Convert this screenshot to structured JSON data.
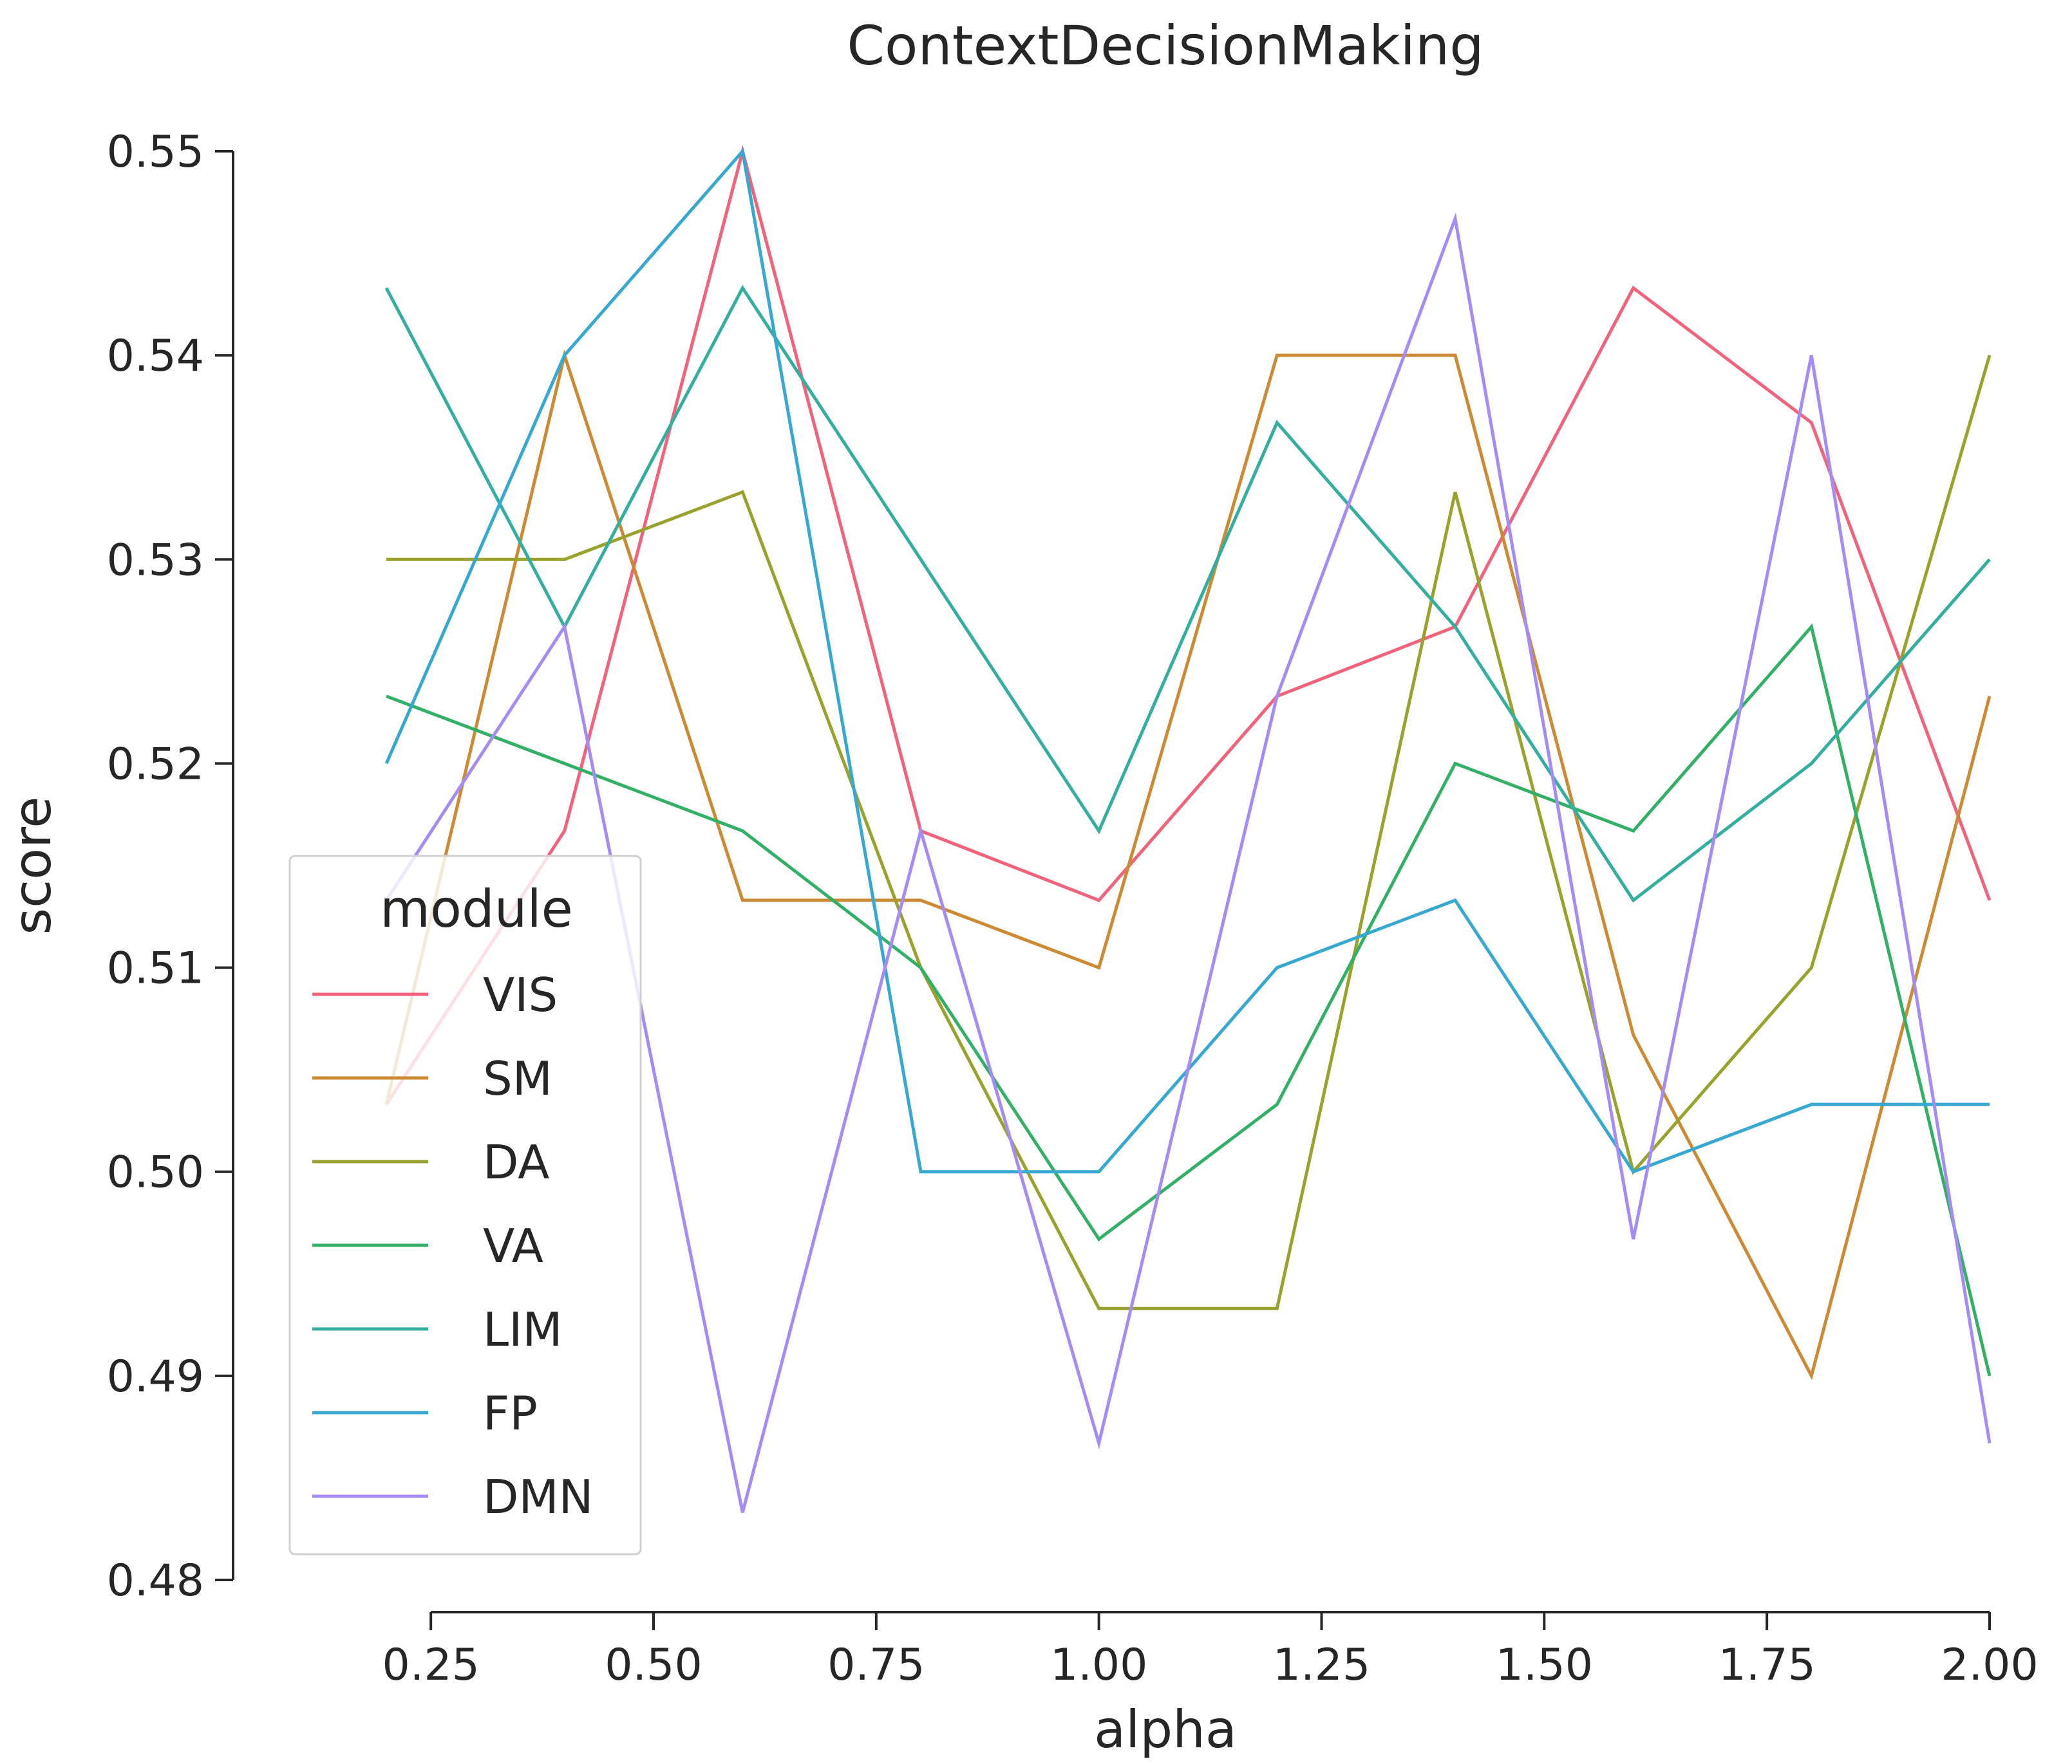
{
  "chart_data": {
    "type": "line",
    "title": "ContextDecisionMaking",
    "xlabel": "alpha",
    "ylabel": "score",
    "xlim": [
      0.2,
      2.0
    ],
    "ylim": [
      0.48,
      0.55
    ],
    "xticks": [
      "0.25",
      "0.50",
      "0.75",
      "1.00",
      "1.25",
      "1.50",
      "1.75",
      "2.00"
    ],
    "yticks": [
      "0.48",
      "0.49",
      "0.50",
      "0.51",
      "0.52",
      "0.53",
      "0.54",
      "0.55"
    ],
    "grid": false,
    "legend": {
      "title": "module",
      "placement": "lower-left"
    },
    "x": [
      0.2,
      0.4,
      0.6,
      0.8,
      1.0,
      1.2,
      1.4,
      1.6,
      1.8,
      2.0
    ],
    "series": [
      {
        "name": "VIS",
        "color": "#f0637a",
        "values": [
          0.5033,
          0.5167,
          0.55,
          0.5167,
          0.5133,
          0.5233,
          0.5267,
          0.5433,
          0.5367,
          0.5133
        ]
      },
      {
        "name": "SM",
        "color": "#cc8a35",
        "values": [
          0.5033,
          0.54,
          0.5133,
          0.5133,
          0.51,
          0.54,
          0.54,
          0.5067,
          0.49,
          0.5233
        ]
      },
      {
        "name": "DA",
        "color": "#9aa22e",
        "values": [
          0.53,
          0.53,
          0.5333,
          0.51,
          0.4933,
          0.4933,
          0.5333,
          0.5,
          0.51,
          0.54
        ]
      },
      {
        "name": "VA",
        "color": "#32b166",
        "values": [
          0.5233,
          0.52,
          0.5167,
          0.51,
          0.4967,
          0.5033,
          0.52,
          0.5167,
          0.5267,
          0.49
        ]
      },
      {
        "name": "LIM",
        "color": "#33ae9f",
        "values": [
          0.5433,
          0.5267,
          0.5433,
          0.53,
          0.5167,
          0.5367,
          0.5267,
          0.5133,
          0.52,
          0.53
        ]
      },
      {
        "name": "FP",
        "color": "#37a9d1",
        "values": [
          0.52,
          0.54,
          0.55,
          0.5,
          0.5,
          0.51,
          0.5133,
          0.5,
          0.5033,
          0.5033
        ]
      },
      {
        "name": "DMN",
        "color": "#a48cf4",
        "values": [
          0.5133,
          0.5267,
          0.4833,
          0.5167,
          0.4867,
          0.5233,
          0.5467,
          0.4967,
          0.54,
          0.4867
        ]
      }
    ]
  }
}
